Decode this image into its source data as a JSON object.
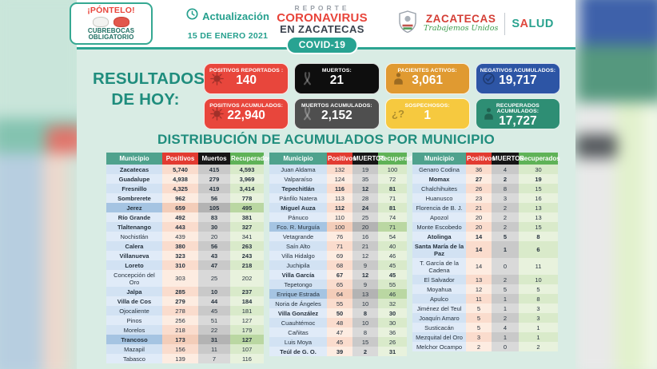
{
  "masthead": {
    "badge": {
      "title": "¡PÓNTELO!",
      "line1": "CUBREBOCAS",
      "line2": "OBLIGATORIO"
    },
    "update": {
      "label": "Actualización",
      "date": "15 DE ENERO 2021"
    },
    "report": {
      "kicker": "REPORTE",
      "title": "CORONAVIRUS",
      "subtitle": "EN ZACATECAS",
      "pill": "COVID-19"
    },
    "logos": {
      "state": "ZACATECAS",
      "state_motto": "Trabajemos Unidos",
      "health_s": "S",
      "health_a": "A",
      "health_lud": "LUD"
    }
  },
  "results": {
    "heading": [
      "RESULTADOS",
      "DE HOY:"
    ],
    "cards": [
      {
        "id": "positivos-reportados",
        "label": "POSITIVOS REPORTADOS :",
        "value": "140",
        "color": "#e8463c",
        "icon": "virus"
      },
      {
        "id": "muertos-hoy",
        "label": "MUERTOS:",
        "value": "21",
        "color": "#0e0e0e",
        "icon": "ribbon"
      },
      {
        "id": "pacientes-activos",
        "label": "PACIENTES ACTIVOS:",
        "value": "3,061",
        "color": "#e09a31",
        "icon": "person"
      },
      {
        "id": "negativos-acumulados",
        "label": "NEGATIVOS ACUMULADOS:",
        "value": "19,717",
        "color": "#2d55a5",
        "icon": "check"
      },
      {
        "id": "positivos-acumulados",
        "label": "POSITIVOS ACUMULADOS:",
        "value": "22,940",
        "color": "#e8463c",
        "icon": "virus"
      },
      {
        "id": "muertos-acumulados",
        "label": "MUERTOS ACUMULADOS:",
        "value": "2,152",
        "color": "#4f4f4f",
        "icon": "ribbon"
      },
      {
        "id": "sospechosos",
        "label": "SOSPECHOSOS:",
        "value": "1",
        "color": "#f6c93f",
        "icon": "question"
      },
      {
        "id": "recuperados-acumulados",
        "label": "RECUPERADOS ACUMULADOS:",
        "value": "17,727",
        "color": "#2e8e74",
        "icon": "person"
      }
    ]
  },
  "distribution": {
    "title": "DISTRIBUCIÓN DE ACUMULADOS POR MUNICIPIO",
    "tables": [
      {
        "headers": [
          "Municipio",
          "Positivos",
          "Muertos",
          "Recuperados"
        ],
        "rows": [
          {
            "name": "Zacatecas",
            "pos": "5,740",
            "deaths": "415",
            "rec": "4,593",
            "bold": true
          },
          {
            "name": "Guadalupe",
            "pos": "4,938",
            "deaths": "279",
            "rec": "3,969",
            "bold": true
          },
          {
            "name": "Fresnillo",
            "pos": "4,325",
            "deaths": "419",
            "rec": "3,414",
            "bold": true
          },
          {
            "name": "Sombrerete",
            "pos": "962",
            "deaths": "56",
            "rec": "778",
            "bold": true
          },
          {
            "name": "Jerez",
            "pos": "659",
            "deaths": "105",
            "rec": "495",
            "bold": true,
            "hl": true
          },
          {
            "name": "Río Grande",
            "pos": "492",
            "deaths": "83",
            "rec": "381",
            "bold": true
          },
          {
            "name": "Tlaltenango",
            "pos": "443",
            "deaths": "30",
            "rec": "327",
            "bold": true
          },
          {
            "name": "Nochistlán",
            "pos": "439",
            "deaths": "20",
            "rec": "341"
          },
          {
            "name": "Calera",
            "pos": "380",
            "deaths": "56",
            "rec": "263",
            "bold": true
          },
          {
            "name": "Villanueva",
            "pos": "323",
            "deaths": "43",
            "rec": "243",
            "bold": true
          },
          {
            "name": "Loreto",
            "pos": "310",
            "deaths": "47",
            "rec": "218",
            "bold": true
          },
          {
            "name": "Concepción del Oro",
            "pos": "303",
            "deaths": "25",
            "rec": "202"
          },
          {
            "name": "Jalpa",
            "pos": "285",
            "deaths": "10",
            "rec": "237",
            "bold": true
          },
          {
            "name": "Villa de Cos",
            "pos": "279",
            "deaths": "44",
            "rec": "184",
            "bold": true
          },
          {
            "name": "Ojocaliente",
            "pos": "278",
            "deaths": "45",
            "rec": "181"
          },
          {
            "name": "Pinos",
            "pos": "256",
            "deaths": "51",
            "rec": "127"
          },
          {
            "name": "Morelos",
            "pos": "218",
            "deaths": "22",
            "rec": "179"
          },
          {
            "name": "Trancoso",
            "pos": "173",
            "deaths": "31",
            "rec": "127",
            "bold": true,
            "hl": true
          },
          {
            "name": "Mazapil",
            "pos": "156",
            "deaths": "11",
            "rec": "107"
          },
          {
            "name": "Tabasco",
            "pos": "139",
            "deaths": "7",
            "rec": "116"
          }
        ]
      },
      {
        "headers": [
          "Municipio",
          "Positivos",
          "MUERTOS",
          "Recuperados"
        ],
        "rows": [
          {
            "name": "Juan Aldama",
            "pos": "132",
            "deaths": "19",
            "rec": "100"
          },
          {
            "name": "Valparaíso",
            "pos": "124",
            "deaths": "35",
            "rec": "72"
          },
          {
            "name": "Tepechitlán",
            "pos": "116",
            "deaths": "12",
            "rec": "81",
            "bold": true
          },
          {
            "name": "Pánfilo Natera",
            "pos": "113",
            "deaths": "28",
            "rec": "71"
          },
          {
            "name": "Miguel Auza",
            "pos": "112",
            "deaths": "24",
            "rec": "81",
            "bold": true
          },
          {
            "name": "Pánuco",
            "pos": "110",
            "deaths": "25",
            "rec": "74"
          },
          {
            "name": "Fco. R. Murguía",
            "pos": "100",
            "deaths": "20",
            "rec": "71",
            "hl": true
          },
          {
            "name": "Vetagrande",
            "pos": "76",
            "deaths": "16",
            "rec": "54"
          },
          {
            "name": "Saín Alto",
            "pos": "71",
            "deaths": "21",
            "rec": "40"
          },
          {
            "name": "Villa Hidalgo",
            "pos": "69",
            "deaths": "12",
            "rec": "46"
          },
          {
            "name": "Juchipila",
            "pos": "68",
            "deaths": "9",
            "rec": "45"
          },
          {
            "name": "Villa García",
            "pos": "67",
            "deaths": "12",
            "rec": "45",
            "bold": true
          },
          {
            "name": "Tepetongo",
            "pos": "65",
            "deaths": "9",
            "rec": "55"
          },
          {
            "name": "Enrique Estrada",
            "pos": "64",
            "deaths": "13",
            "rec": "46",
            "hl": true
          },
          {
            "name": "Noria de Ángeles",
            "pos": "55",
            "deaths": "10",
            "rec": "32"
          },
          {
            "name": "Villa González",
            "pos": "50",
            "deaths": "8",
            "rec": "30",
            "bold": true
          },
          {
            "name": "Cuauhtémoc",
            "pos": "48",
            "deaths": "10",
            "rec": "30"
          },
          {
            "name": "Cañitas",
            "pos": "47",
            "deaths": "8",
            "rec": "36"
          },
          {
            "name": "Luis Moya",
            "pos": "45",
            "deaths": "15",
            "rec": "26"
          },
          {
            "name": "Teúl de G. O.",
            "pos": "39",
            "deaths": "2",
            "rec": "31",
            "bold": true
          }
        ]
      },
      {
        "headers": [
          "Municipio",
          "Positivos",
          "MUERTOS",
          "Recuperados"
        ],
        "rows": [
          {
            "name": "Genaro Codina",
            "pos": "36",
            "deaths": "4",
            "rec": "30"
          },
          {
            "name": "Momax",
            "pos": "27",
            "deaths": "2",
            "rec": "19",
            "bold": true
          },
          {
            "name": "Chalchihuites",
            "pos": "26",
            "deaths": "8",
            "rec": "15"
          },
          {
            "name": "Huanusco",
            "pos": "23",
            "deaths": "3",
            "rec": "16"
          },
          {
            "name": "Florencia de B. J.",
            "pos": "21",
            "deaths": "2",
            "rec": "13"
          },
          {
            "name": "Apozol",
            "pos": "20",
            "deaths": "2",
            "rec": "13"
          },
          {
            "name": "Monte Escobedo",
            "pos": "20",
            "deaths": "2",
            "rec": "15"
          },
          {
            "name": "Atolinga",
            "pos": "14",
            "deaths": "5",
            "rec": "8",
            "bold": true
          },
          {
            "name": "Santa María de la Paz",
            "pos": "14",
            "deaths": "1",
            "rec": "6",
            "bold": true
          },
          {
            "name": "T. García de la Cadena",
            "pos": "14",
            "deaths": "0",
            "rec": "11"
          },
          {
            "name": "El Salvador",
            "pos": "13",
            "deaths": "2",
            "rec": "10"
          },
          {
            "name": "Moyahua",
            "pos": "12",
            "deaths": "5",
            "rec": "5"
          },
          {
            "name": "Apulco",
            "pos": "11",
            "deaths": "1",
            "rec": "8"
          },
          {
            "name": "Jiménez del Teul",
            "pos": "5",
            "deaths": "1",
            "rec": "3"
          },
          {
            "name": "Joaquín Amaro",
            "pos": "5",
            "deaths": "2",
            "rec": "3"
          },
          {
            "name": "Susticacán",
            "pos": "5",
            "deaths": "4",
            "rec": "1"
          },
          {
            "name": "Mezquital del Oro",
            "pos": "3",
            "deaths": "1",
            "rec": "1"
          },
          {
            "name": "Melchor Ocampo",
            "pos": "2",
            "deaths": "0",
            "rec": "2"
          }
        ]
      }
    ]
  }
}
